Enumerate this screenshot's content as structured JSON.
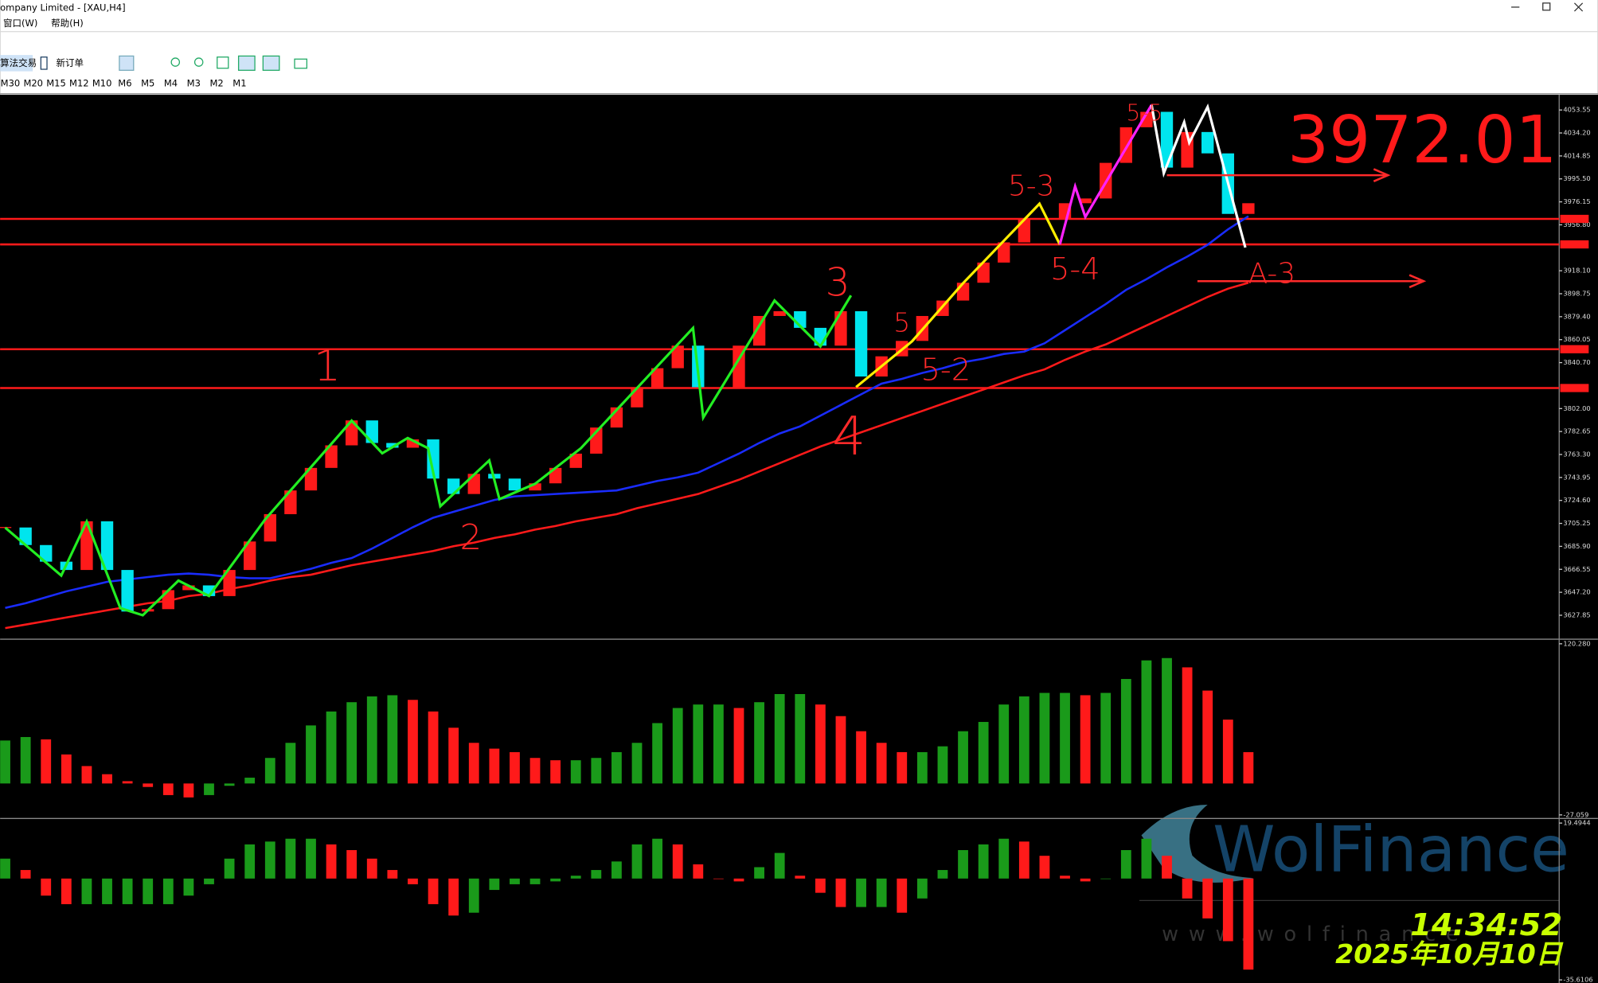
{
  "window": {
    "title": "ompany Limited - [XAU,H4]",
    "menu": [
      "窗口(W)",
      "帮助(H)"
    ],
    "toolbar": [
      "算法交易",
      "新订单"
    ],
    "timeframes": [
      "M30",
      "M20",
      "M15",
      "M12",
      "M10",
      "M6",
      "M5",
      "M4",
      "M3",
      "M2",
      "M1"
    ],
    "price_note": "3972.01",
    "annotations": [
      "1",
      "2",
      "3",
      "4",
      "5",
      "5-2",
      "5-3",
      "5-4",
      "5-5",
      "A-3"
    ],
    "watermark": "WolFinance",
    "watermark_url": "www.wolfinance",
    "time": "14:34:52",
    "date": "2025年10月10日"
  },
  "chart_data": [
    {
      "type": "candlestick",
      "up_color": "#ff1a1a",
      "down_color": "#00e5ee",
      "values": [
        3701.8,
        3687,
        3673,
        3666,
        3707,
        3666,
        3631,
        3633,
        3649,
        3653,
        3644,
        3666,
        3690,
        3713,
        3733,
        3752,
        3771,
        3792,
        3773,
        3769,
        3776,
        3743,
        3730,
        3747,
        3743,
        3733,
        3739,
        3752,
        3764,
        3786,
        3803,
        3820,
        3836,
        3855,
        3820,
        3820,
        3855,
        3880,
        3884,
        3870,
        3855,
        3884,
        3829,
        3846,
        3859,
        3880,
        3893,
        3908,
        3925,
        3942,
        3962,
        3962,
        3975,
        3979,
        4009,
        4039,
        4052,
        4005,
        4035,
        4017,
        3966,
        3975
      ],
      "lines": [
        {
          "color": "#1a2cff",
          "values": [
            3634,
            3638,
            3643,
            3648,
            3652,
            3656,
            3658,
            3660,
            3662,
            3663,
            3662,
            3660,
            3659,
            3659,
            3663,
            3667,
            3672,
            3676,
            3684,
            3693,
            3702,
            3710,
            3715,
            3720,
            3725,
            3728,
            3729,
            3730,
            3731,
            3732,
            3733,
            3737,
            3741,
            3744,
            3748,
            3756,
            3764,
            3773,
            3781,
            3787,
            3796,
            3805,
            3814,
            3823,
            3827,
            3832,
            3836,
            3841,
            3844,
            3848,
            3850,
            3857,
            3868,
            3879,
            3890,
            3902,
            3911,
            3921,
            3930,
            3940,
            3953,
            3964
          ]
        },
        {
          "color": "#ff1a1a",
          "values": [
            3617,
            3620,
            3623,
            3626,
            3629,
            3632,
            3635,
            3638,
            3640,
            3644,
            3646,
            3650,
            3653,
            3657,
            3660,
            3662,
            3666,
            3670,
            3673,
            3676,
            3679,
            3682,
            3686,
            3689,
            3693,
            3696,
            3700,
            3703,
            3707,
            3710,
            3713,
            3718,
            3722,
            3726,
            3730,
            3736,
            3742,
            3749,
            3756,
            3763,
            3770,
            3776,
            3782,
            3788,
            3794,
            3800,
            3806,
            3812,
            3818,
            3824,
            3830,
            3835,
            3843,
            3850,
            3856,
            3864,
            3872,
            3880,
            3888,
            3896,
            3903,
            3908
          ]
        }
      ],
      "levels": [
        3961.8,
        3940.3,
        3852,
        3819.3
      ],
      "level_color": "#ff1a1a",
      "ylim": [
        3608.1,
        4066.4
      ],
      "yticks": [
        4053.55,
        {
          "value": 4034.2,
          "label": "4034.20"
        },
        4014.85,
        {
          "value": 3995.5,
          "label": "3995.50"
        },
        3976.15,
        {
          "value": 3956.8,
          "label": "3956.80"
        },
        {
          "value": 3918.1,
          "label": "3918.10"
        },
        3898.75,
        {
          "value": 3879.4,
          "label": "3879.40"
        },
        3860.05,
        {
          "value": 3840.7,
          "label": "3840.70"
        },
        {
          "value": 3802,
          "label": "3802.00"
        },
        3782.65,
        {
          "value": 3763.3,
          "label": "3763.30"
        },
        3743.95,
        {
          "value": 3724.6,
          "label": "3724.60"
        },
        3705.25,
        {
          "value": 3685.9,
          "label": "3685.90"
        },
        3666.55,
        {
          "value": 3647.2,
          "label": "3647.20"
        },
        3627.85
      ]
    },
    {
      "type": "histogram",
      "up_color": "#1a9a1a",
      "down_color": "#ff1a1a",
      "values": [
        37,
        40,
        38,
        25,
        15,
        8,
        2,
        -3,
        -10,
        -12,
        -10,
        -2,
        5,
        22,
        35,
        50,
        62,
        70,
        75,
        76,
        72,
        62,
        48,
        35,
        30,
        27,
        22,
        20,
        20,
        22,
        27,
        35,
        52,
        65,
        68,
        68,
        65,
        70,
        77,
        77,
        68,
        58,
        45,
        35,
        27,
        27,
        32,
        45,
        53,
        68,
        75,
        78,
        78,
        76,
        78,
        90,
        106,
        108,
        100,
        80,
        55,
        27
      ],
      "ylim": [
        -29.7,
        123.8
      ],
      "yticks": [
        {
          "value": 120.28,
          "label": "120.280"
        },
        -27.059
      ]
    },
    {
      "type": "histogram",
      "up_color": "#1a9a1a",
      "down_color": "#ff1a1a",
      "values": [
        7,
        3,
        -6,
        -9,
        -9,
        -9,
        -9,
        -9,
        -9,
        -6,
        -2,
        7,
        12,
        13,
        14,
        14,
        12,
        10,
        7,
        3,
        -2,
        -9,
        -13,
        -12,
        -4,
        -2,
        -2,
        -1,
        1,
        3,
        6,
        12,
        14,
        12,
        5,
        0,
        -1,
        4,
        9,
        1,
        -5,
        -10,
        -10,
        -10,
        -12,
        -7,
        3,
        10,
        12,
        14,
        13,
        8,
        1,
        -1,
        0,
        10,
        14,
        8,
        -7,
        -14,
        -22,
        -32
      ],
      "ylim": [
        -36.7,
        20.57
      ],
      "yticks": [
        19.4944,
        -35.6106
      ]
    }
  ]
}
